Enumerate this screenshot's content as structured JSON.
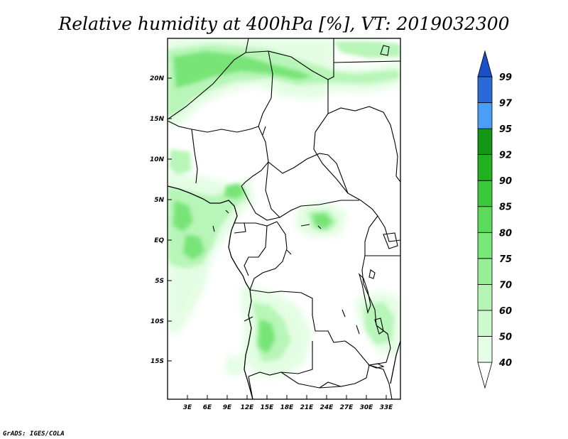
{
  "title": "Relative humidity at 400hPa [%], VT: 2019032300",
  "credit": "GrADS: IGES/COLA",
  "map": {
    "lon_labels": [
      "3E",
      "6E",
      "9E",
      "12E",
      "15E",
      "18E",
      "21E",
      "24E",
      "27E",
      "30E",
      "33E"
    ],
    "lat_labels": [
      "20N",
      "15N",
      "10N",
      "5N",
      "EQ",
      "5S",
      "10S",
      "15S"
    ]
  },
  "colorbar": {
    "levels": [
      "40",
      "50",
      "60",
      "70",
      "75",
      "80",
      "85",
      "90",
      "92",
      "95",
      "97",
      "99"
    ],
    "colors": [
      "#ffffff",
      "#e6fee6",
      "#cdfacd",
      "#b4f5b4",
      "#96ef96",
      "#78e878",
      "#5adc5a",
      "#3cc83c",
      "#20b020",
      "#139613",
      "#4a9ef5",
      "#2a6ad8",
      "#1a50c8"
    ]
  }
}
